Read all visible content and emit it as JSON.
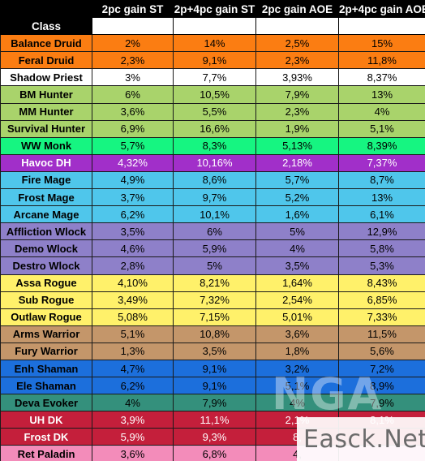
{
  "header": {
    "class_label": "Class",
    "columns": [
      "2pc gain ST",
      "2p+4pc gain ST",
      "2pc gain AOE",
      "2p+4pc gain AOE"
    ]
  },
  "rows": [
    {
      "name": "Balance Druid",
      "v": [
        "2%",
        "14%",
        "2,5%",
        "15%"
      ],
      "color": "#fb7d12"
    },
    {
      "name": "Feral Druid",
      "v": [
        "2,3%",
        "9,1%",
        "2,3%",
        "11,8%"
      ],
      "color": "#fb7d12"
    },
    {
      "name": "Shadow Priest",
      "v": [
        "3%",
        "7,7%",
        "3,93%",
        "8,37%"
      ],
      "color": "#ffffff"
    },
    {
      "name": "BM Hunter",
      "v": [
        "6%",
        "10,5%",
        "7,9%",
        "13%"
      ],
      "color": "#a9d36b"
    },
    {
      "name": "MM Hunter",
      "v": [
        "3,6%",
        "5,5%",
        "2,3%",
        "4%"
      ],
      "color": "#a9d36b"
    },
    {
      "name": "Survival Hunter",
      "v": [
        "6,9%",
        "16,6%",
        "1,9%",
        "5,1%"
      ],
      "color": "#a9d36b"
    },
    {
      "name": "WW Monk",
      "v": [
        "5,7%",
        "8,3%",
        "5,13%",
        "8,39%"
      ],
      "color": "#16f581"
    },
    {
      "name": "Havoc DH",
      "v": [
        "4,32%",
        "10,16%",
        "2,18%",
        "7,37%"
      ],
      "color": "#a12fc9"
    },
    {
      "name": "Fire Mage",
      "v": [
        "4,9%",
        "8,6%",
        "5,7%",
        "8,7%"
      ],
      "color": "#4fc6eb"
    },
    {
      "name": "Frost Mage",
      "v": [
        "3,7%",
        "9,7%",
        "5,2%",
        "13%"
      ],
      "color": "#4fc6eb"
    },
    {
      "name": "Arcane Mage",
      "v": [
        "6,2%",
        "10,1%",
        "1,6%",
        "6,1%"
      ],
      "color": "#4fc6eb"
    },
    {
      "name": "Affliction Wlock",
      "v": [
        "3,5%",
        "6%",
        "5%",
        "12,9%"
      ],
      "color": "#8e80c9"
    },
    {
      "name": "Demo Wlock",
      "v": [
        "4,6%",
        "5,9%",
        "4%",
        "5,8%"
      ],
      "color": "#8e80c9"
    },
    {
      "name": "Destro Wlock",
      "v": [
        "2,8%",
        "5%",
        "3,5%",
        "5,3%"
      ],
      "color": "#8e80c9"
    },
    {
      "name": "Assa Rogue",
      "v": [
        "4,10%",
        "8,21%",
        "1,64%",
        "8,43%"
      ],
      "color": "#fff16a"
    },
    {
      "name": "Sub Rogue",
      "v": [
        "3,49%",
        "7,32%",
        "2,54%",
        "6,85%"
      ],
      "color": "#fff16a"
    },
    {
      "name": "Outlaw Rogue",
      "v": [
        "5,08%",
        "7,15%",
        "5,01%",
        "7,33%"
      ],
      "color": "#fff16a"
    },
    {
      "name": "Arms Warrior",
      "v": [
        "5,1%",
        "10,8%",
        "3,6%",
        "11,5%"
      ],
      "color": "#c4966a"
    },
    {
      "name": "Fury Warrior",
      "v": [
        "1,3%",
        "3,5%",
        "1,8%",
        "5,6%"
      ],
      "color": "#c4966a"
    },
    {
      "name": "Enh Shaman",
      "v": [
        "4,7%",
        "9,1%",
        "3,2%",
        "7,2%"
      ],
      "color": "#1c6fdc"
    },
    {
      "name": "Ele Shaman",
      "v": [
        "6,2%",
        "9,1%",
        "5,1%",
        "8,9%"
      ],
      "color": "#1c6fdc"
    },
    {
      "name": "Deva Evoker",
      "v": [
        "4%",
        "7,9%",
        "4%",
        "7,9%"
      ],
      "color": "#34907c"
    },
    {
      "name": "UH DK",
      "v": [
        "3,9%",
        "11,1%",
        "2,1%",
        "8,1%"
      ],
      "color": "#c41f3b"
    },
    {
      "name": "Frost DK",
      "v": [
        "5,9%",
        "9,3%",
        "8,",
        ""
      ],
      "color": "#c41f3b"
    },
    {
      "name": "Ret Paladin",
      "v": [
        "3,6%",
        "6,8%",
        "4,",
        ""
      ],
      "color": "#f38cba"
    }
  ],
  "watermark": {
    "top_text": "NGA",
    "bottom_text": "Easck.Net"
  }
}
